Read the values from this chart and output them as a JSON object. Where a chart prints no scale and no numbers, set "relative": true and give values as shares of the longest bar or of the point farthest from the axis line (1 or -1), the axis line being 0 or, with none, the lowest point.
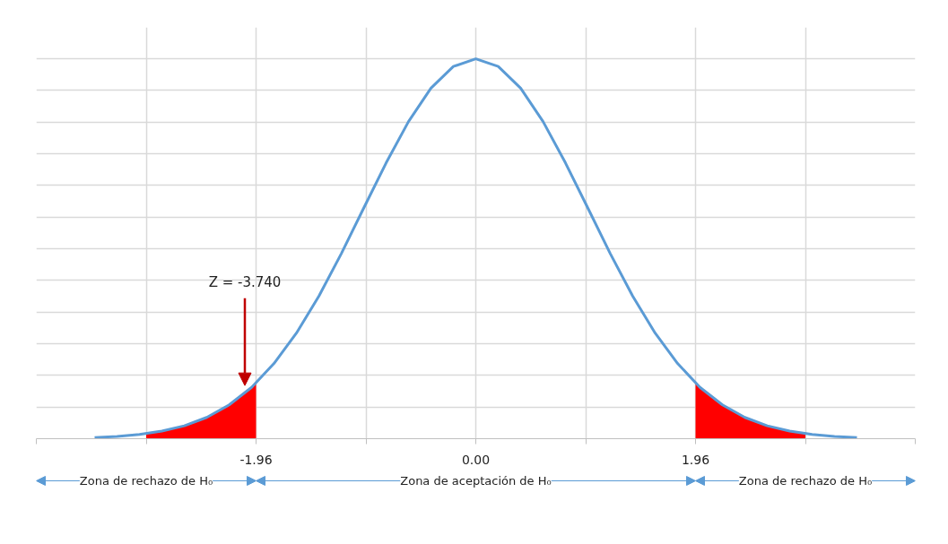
{
  "chart_data": {
    "type": "line",
    "relative": true,
    "grid": true,
    "marker": "none",
    "line_style": "solid",
    "xlim": [
      -3.92,
      3.92
    ],
    "xticks": [
      {
        "value": -3.92,
        "label": null
      },
      {
        "value": -2.94,
        "label": null
      },
      {
        "value": -1.96,
        "label": "-1.96"
      },
      {
        "value": -0.98,
        "label": null
      },
      {
        "value": 0,
        "label": "0.00"
      },
      {
        "value": 0.98,
        "label": null
      },
      {
        "value": 1.96,
        "label": "1.96"
      },
      {
        "value": 2.94,
        "label": null
      },
      {
        "value": 3.92,
        "label": null
      }
    ],
    "series": [
      {
        "type": "area",
        "color": "#ff0000",
        "x": [
          -2.94,
          -2.8,
          -2.6,
          -2.4,
          -2.2,
          -2.0,
          -1.96
        ],
        "values": [
          0.013,
          0.02,
          0.034,
          0.056,
          0.089,
          0.135,
          0.146
        ]
      },
      {
        "type": "area",
        "color": "#ff0000",
        "x": [
          1.96,
          2.0,
          2.2,
          2.4,
          2.6,
          2.8,
          2.94
        ],
        "values": [
          0.146,
          0.135,
          0.089,
          0.056,
          0.034,
          0.02,
          0.013
        ]
      },
      {
        "color": "#5b9bd5",
        "x": [
          -3.4,
          -3.2,
          -3.0,
          -2.8,
          -2.6,
          -2.4,
          -2.2,
          -2.0,
          -1.8,
          -1.6,
          -1.4,
          -1.2,
          -1.0,
          -0.8,
          -0.6,
          -0.4,
          -0.2,
          0,
          0.2,
          0.4,
          0.6,
          0.8,
          1.0,
          1.2,
          1.4,
          1.6,
          1.8,
          2.0,
          2.2,
          2.4,
          2.6,
          2.8,
          3.0,
          3.2,
          3.4
        ],
        "values": [
          0.003,
          0.006,
          0.011,
          0.02,
          0.034,
          0.056,
          0.089,
          0.135,
          0.198,
          0.278,
          0.375,
          0.487,
          0.607,
          0.726,
          0.835,
          0.923,
          0.98,
          1,
          0.98,
          0.923,
          0.835,
          0.726,
          0.607,
          0.487,
          0.375,
          0.278,
          0.198,
          0.135,
          0.089,
          0.056,
          0.034,
          0.02,
          0.011,
          0.006,
          0.003
        ]
      }
    ],
    "annotations": [
      {
        "text": "Z = -3.740",
        "x": -2.06,
        "y": 0.14
      },
      "Zona de rechazo de H₀",
      "Zona de aceptación de H₀",
      "Zona de rechazo de H₀"
    ]
  }
}
